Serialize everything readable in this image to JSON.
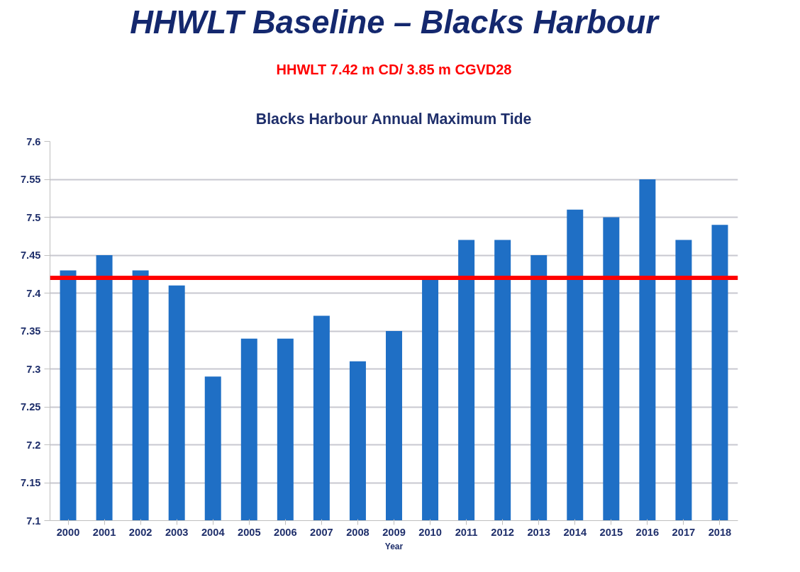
{
  "chart_data": {
    "type": "bar",
    "title": "HHWLT Baseline – Blacks Harbour",
    "subtitle": "Blacks Harbour Annual Maximum Tide",
    "xlabel": "Year",
    "categories": [
      "2000",
      "2001",
      "2002",
      "2003",
      "2004",
      "2005",
      "2006",
      "2007",
      "2008",
      "2009",
      "2010",
      "2011",
      "2012",
      "2013",
      "2014",
      "2015",
      "2016",
      "2017",
      "2018"
    ],
    "values": [
      7.43,
      7.45,
      7.43,
      7.41,
      7.29,
      7.34,
      7.34,
      7.37,
      7.31,
      7.35,
      7.42,
      7.47,
      7.47,
      7.45,
      7.51,
      7.5,
      7.55,
      7.47,
      7.49
    ],
    "color": "#1f6fc5",
    "ylim": [
      7.1,
      7.6
    ],
    "yticks": [
      7.1,
      7.15,
      7.2,
      7.25,
      7.3,
      7.35,
      7.4,
      7.45,
      7.5,
      7.55,
      7.6
    ],
    "grid": "y",
    "ref_lines": [
      {
        "axis": "y",
        "value": 7.42,
        "label": "HHWLT 7.42 m CD/ 3.85 m CGVD28",
        "color": "#ff0000"
      }
    ]
  }
}
